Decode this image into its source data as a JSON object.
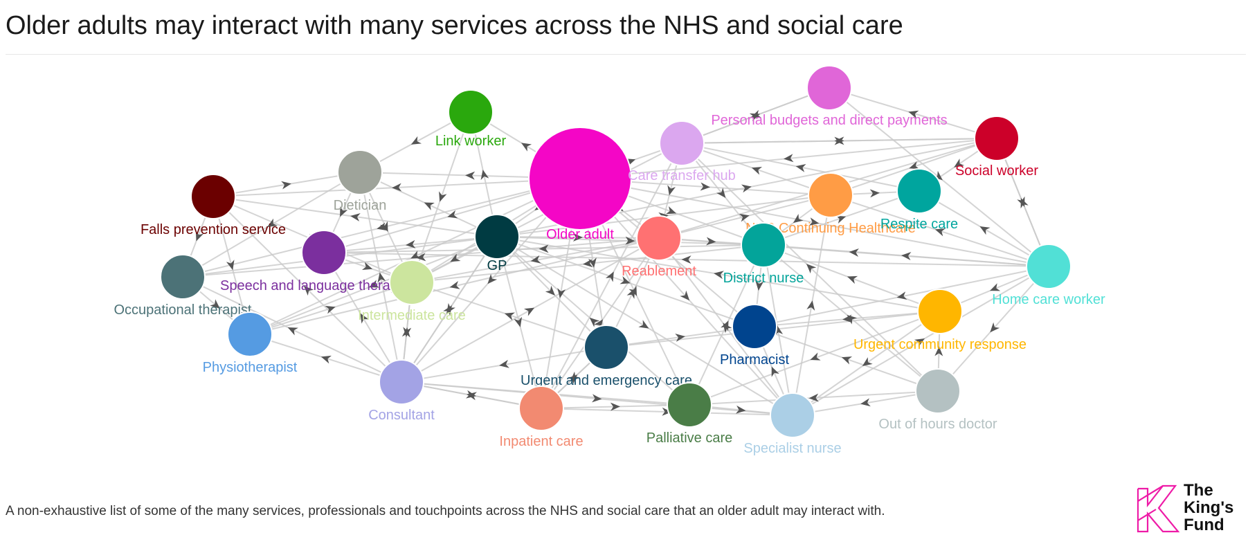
{
  "title": "Older adults may interact with many services across the NHS and social care",
  "caption": "A non-exhaustive list of some of the many services, professionals and touchpoints across the NHS and social care that an older adult may interact with.",
  "logo": {
    "line1": "The",
    "line2": "King's",
    "line3": "Fund",
    "brand_color": "#ee1ba7"
  },
  "colors": {
    "edge": "#c9c9c9",
    "arrow": "#555555"
  },
  "nodes": [
    {
      "id": "older-adult",
      "label": "Older adult",
      "color": "#f406c6"
    },
    {
      "id": "gp",
      "label": "GP",
      "color": "#003b42"
    },
    {
      "id": "link-worker",
      "label": "Link worker",
      "color": "#2aa80d"
    },
    {
      "id": "personal-budgets",
      "label": "Personal budgets and direct payments",
      "color": "#e066d8"
    },
    {
      "id": "care-transfer-hub",
      "label": "Care transfer hub",
      "color": "#dba7ef"
    },
    {
      "id": "social-worker",
      "label": "Social worker",
      "color": "#cc0029"
    },
    {
      "id": "dietician",
      "label": "Dietician",
      "color": "#9ea39a"
    },
    {
      "id": "falls-prevention",
      "label": "Falls prevention service",
      "color": "#6b0000"
    },
    {
      "id": "nhs-chc",
      "label": "NHS Continuing Healthcare",
      "color": "#ff9c45"
    },
    {
      "id": "respite-care",
      "label": "Respite care",
      "color": "#00a59e"
    },
    {
      "id": "speech-language",
      "label": "Speech and language therapist",
      "color": "#7b2f9e"
    },
    {
      "id": "reablement",
      "label": "Reablement",
      "color": "#ff7172"
    },
    {
      "id": "district-nurse",
      "label": "District nurse",
      "color": "#03a49a"
    },
    {
      "id": "home-care-worker",
      "label": "Home care worker",
      "color": "#51e0d6"
    },
    {
      "id": "occupational-therapist",
      "label": "Occupational therapist",
      "color": "#4c7277"
    },
    {
      "id": "intermediate-care",
      "label": "Intermediate care",
      "color": "#cce59e"
    },
    {
      "id": "physiotherapist",
      "label": "Physiotherapist",
      "color": "#559be2"
    },
    {
      "id": "urgent-community-response",
      "label": "Urgent community response",
      "color": "#ffb600"
    },
    {
      "id": "pharmacist",
      "label": "Pharmacist",
      "color": "#00448e"
    },
    {
      "id": "urgent-emergency-care",
      "label": "Urgent and emergency care",
      "color": "#1a506b"
    },
    {
      "id": "consultant",
      "label": "Consultant",
      "color": "#a3a3e5"
    },
    {
      "id": "inpatient-care",
      "label": "Inpatient care",
      "color": "#f28a71"
    },
    {
      "id": "palliative-care",
      "label": "Palliative care",
      "color": "#4a7d47"
    },
    {
      "id": "specialist-nurse",
      "label": "Specialist nurse",
      "color": "#abcfe6"
    },
    {
      "id": "out-of-hours-doctor",
      "label": "Out of hours doctor",
      "color": "#b4c1c2"
    }
  ]
}
